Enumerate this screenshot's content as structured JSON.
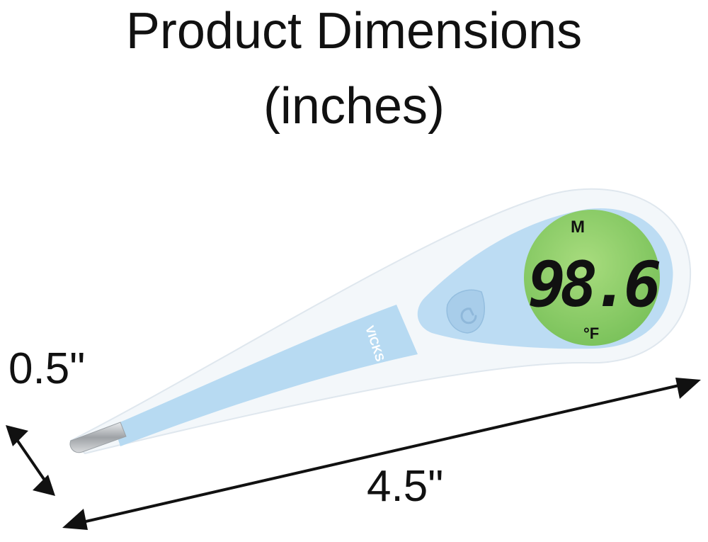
{
  "title_line1": "Product Dimensions",
  "title_line2": "(inches)",
  "dimensions": {
    "width_label": "0.5\"",
    "length_label": "4.5\""
  },
  "product": {
    "brand": "VICKS",
    "display_reading": "98.6",
    "display_mode": "M",
    "display_unit": "°F",
    "button_icon": "power-icon",
    "colors": {
      "body_blue": "#b7daf2",
      "body_white": "#f4f8fb",
      "display_green": "#8ccf6a",
      "tip_metal": "#b9bcc0"
    }
  }
}
